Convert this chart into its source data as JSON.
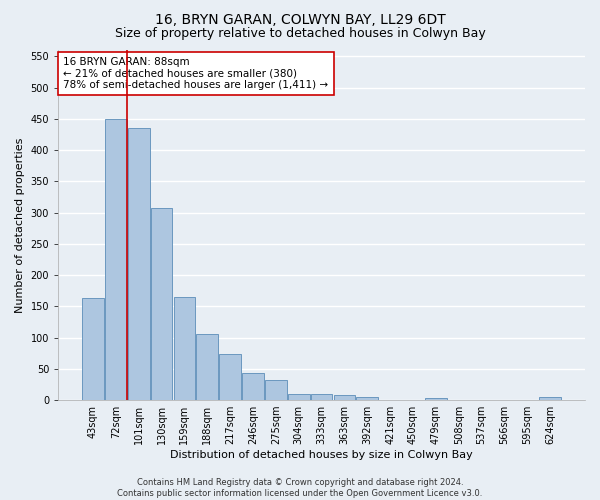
{
  "title": "16, BRYN GARAN, COLWYN BAY, LL29 6DT",
  "subtitle": "Size of property relative to detached houses in Colwyn Bay",
  "xlabel": "Distribution of detached houses by size in Colwyn Bay",
  "ylabel": "Number of detached properties",
  "categories": [
    "43sqm",
    "72sqm",
    "101sqm",
    "130sqm",
    "159sqm",
    "188sqm",
    "217sqm",
    "246sqm",
    "275sqm",
    "304sqm",
    "333sqm",
    "363sqm",
    "392sqm",
    "421sqm",
    "450sqm",
    "479sqm",
    "508sqm",
    "537sqm",
    "566sqm",
    "595sqm",
    "624sqm"
  ],
  "values": [
    163,
    450,
    435,
    307,
    165,
    105,
    74,
    44,
    32,
    10,
    10,
    8,
    5,
    0,
    0,
    4,
    0,
    0,
    0,
    0,
    5
  ],
  "bar_color": "#adc6e0",
  "bar_edge_color": "#5b8db8",
  "annotation_text": "16 BRYN GARAN: 88sqm\n← 21% of detached houses are smaller (380)\n78% of semi-detached houses are larger (1,411) →",
  "vline_x": 1.5,
  "vline_color": "#cc0000",
  "footnote": "Contains HM Land Registry data © Crown copyright and database right 2024.\nContains public sector information licensed under the Open Government Licence v3.0.",
  "ylim": [
    0,
    560
  ],
  "yticks": [
    0,
    50,
    100,
    150,
    200,
    250,
    300,
    350,
    400,
    450,
    500,
    550
  ],
  "bg_color": "#e8eef4",
  "grid_color": "#ffffff",
  "title_fontsize": 10,
  "subtitle_fontsize": 9,
  "axis_label_fontsize": 8,
  "tick_fontsize": 7,
  "annotation_fontsize": 7.5,
  "footnote_fontsize": 6
}
